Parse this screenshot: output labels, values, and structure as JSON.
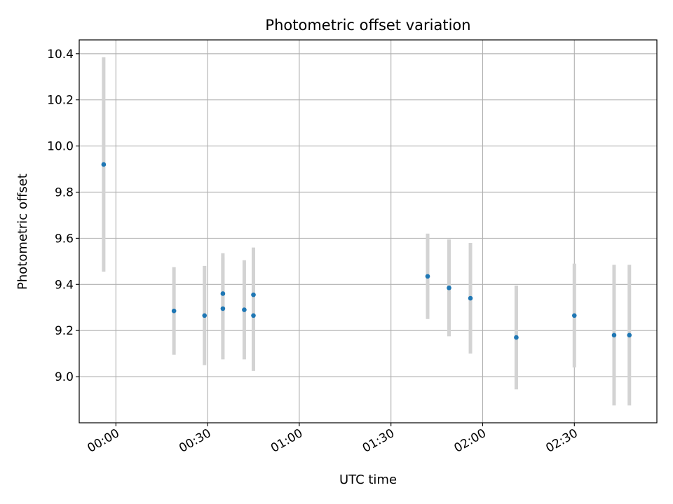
{
  "chart_data": {
    "type": "scatter",
    "title": "Photometric offset variation",
    "xlabel": "UTC time",
    "ylabel": "Photometric offset",
    "x_tick_labels": [
      "00:00",
      "00:30",
      "01:00",
      "01:30",
      "02:00",
      "02:30"
    ],
    "x_ticks_minutes": [
      0,
      30,
      60,
      90,
      120,
      150
    ],
    "xlim_minutes": [
      -12,
      177
    ],
    "ylim": [
      8.8,
      10.46
    ],
    "y_ticks": [
      9.0,
      9.2,
      9.4,
      9.6,
      9.8,
      10.0,
      10.2,
      10.4
    ],
    "y_tick_labels": [
      "9.0",
      "9.2",
      "9.4",
      "9.6",
      "9.8",
      "10.0",
      "10.2",
      "10.4"
    ],
    "grid": true,
    "point_color": "#1f77b4",
    "errorbar_color": "#d3d3d3",
    "points": [
      {
        "t": "23:56",
        "y": 9.92,
        "err": 0.465
      },
      {
        "t": "00:19",
        "y": 9.285,
        "err": 0.19
      },
      {
        "t": "00:29",
        "y": 9.265,
        "err": 0.215
      },
      {
        "t": "00:35",
        "y": 9.295,
        "err": 0.22
      },
      {
        "t": "00:35",
        "y": 9.36,
        "err": 0.175
      },
      {
        "t": "00:42",
        "y": 9.29,
        "err": 0.215
      },
      {
        "t": "00:45",
        "y": 9.355,
        "err": 0.205
      },
      {
        "t": "00:45",
        "y": 9.265,
        "err": 0.24
      },
      {
        "t": "01:42",
        "y": 9.435,
        "err": 0.185
      },
      {
        "t": "01:49",
        "y": 9.385,
        "err": 0.21
      },
      {
        "t": "01:56",
        "y": 9.34,
        "err": 0.24
      },
      {
        "t": "02:11",
        "y": 9.17,
        "err": 0.225
      },
      {
        "t": "02:30",
        "y": 9.265,
        "err": 0.225
      },
      {
        "t": "02:43",
        "y": 9.18,
        "err": 0.305
      },
      {
        "t": "02:48",
        "y": 9.18,
        "err": 0.305
      }
    ]
  }
}
